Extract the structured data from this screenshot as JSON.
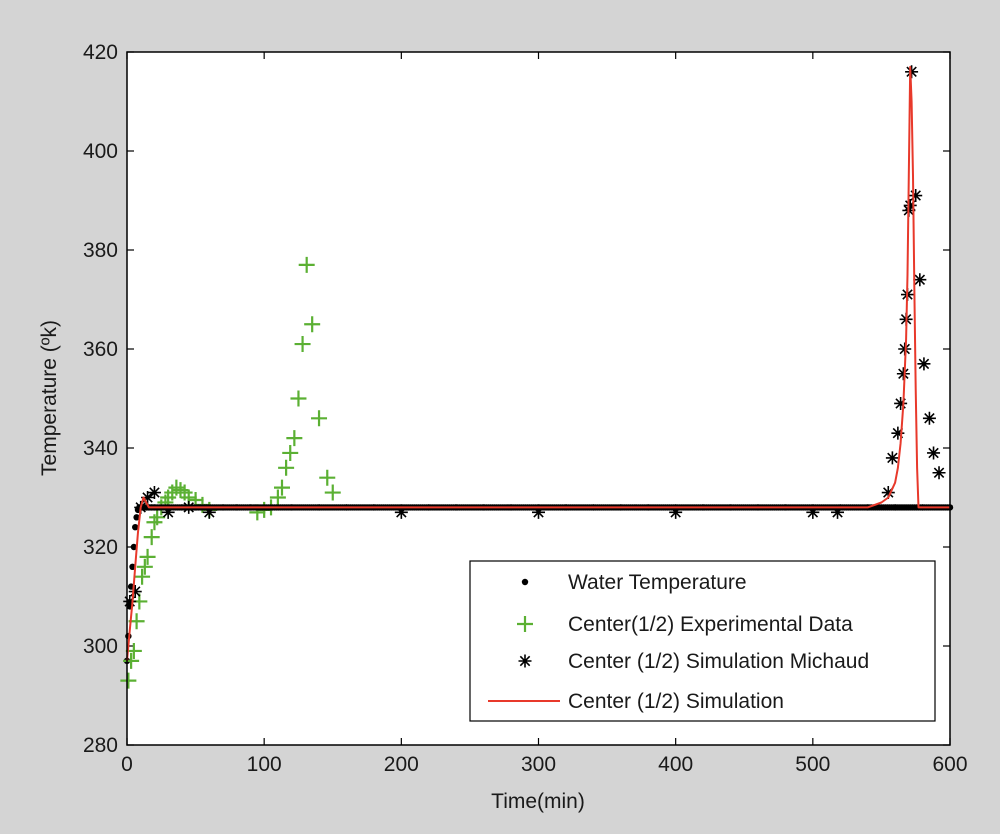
{
  "chart_data": {
    "type": "line",
    "title": "",
    "xlabel": "Time(min)",
    "ylabel": "Temperature (ºk)",
    "xlim": [
      0,
      600
    ],
    "ylim": [
      280,
      420
    ],
    "xticks": [
      0,
      100,
      200,
      300,
      400,
      500,
      600
    ],
    "yticks": [
      280,
      300,
      320,
      340,
      360,
      380,
      400,
      420
    ],
    "grid": false,
    "legend_position": "bottom-right",
    "series": [
      {
        "name": "Water Temperature",
        "marker": "dot",
        "color": "#000000",
        "x": [
          0,
          1,
          2,
          3,
          4,
          5,
          6,
          7,
          8,
          9,
          10,
          11,
          12,
          14,
          16,
          18,
          20,
          25,
          30,
          40,
          50,
          60,
          70,
          80,
          90,
          100,
          120,
          140,
          160,
          180,
          200,
          220,
          240,
          260,
          280,
          300,
          320,
          340,
          360,
          380,
          400,
          420,
          440,
          460,
          480,
          500,
          520,
          540,
          560,
          580,
          600
        ],
        "y": [
          297,
          302,
          308,
          312,
          316,
          320,
          324,
          326,
          327.5,
          328,
          328,
          328,
          328,
          328,
          328,
          328,
          328,
          328,
          328,
          328,
          328,
          328,
          328,
          328,
          328,
          328,
          328,
          328,
          328,
          328,
          328,
          328,
          328,
          328,
          328,
          328,
          328,
          328,
          328,
          328,
          328,
          328,
          328,
          328,
          328,
          328,
          328,
          328,
          328,
          328,
          328
        ]
      },
      {
        "name": "Center(1/2) Experimental Data",
        "marker": "plus",
        "color": "#5bb033",
        "x": [
          1,
          3,
          5,
          7,
          9,
          11,
          13,
          15,
          18,
          20,
          22,
          25,
          28,
          30,
          33,
          36,
          39,
          42,
          45,
          50,
          55,
          60,
          95,
          100,
          105,
          110,
          113,
          116,
          119,
          122,
          125,
          128,
          131,
          135,
          140,
          146,
          150
        ],
        "y": [
          293,
          297,
          299,
          305,
          309,
          314,
          316,
          318,
          322,
          325,
          326,
          328,
          329,
          330,
          331,
          332,
          331.5,
          331,
          330,
          329.5,
          328.5,
          327.5,
          327,
          327.5,
          328,
          330,
          332,
          336,
          339,
          342,
          350,
          361,
          377,
          365,
          346,
          334,
          331
        ]
      },
      {
        "name": "Center (1/2) Simulation Michaud",
        "marker": "asterisk",
        "color": "#000000",
        "x": [
          2,
          6,
          10,
          15,
          20,
          30,
          45,
          60,
          200,
          300,
          400,
          500,
          518,
          555,
          558,
          562,
          564,
          566,
          567,
          568,
          569,
          570,
          571,
          572,
          575,
          578,
          581,
          585,
          588,
          592
        ],
        "y": [
          309,
          311,
          328,
          330,
          331,
          327,
          328,
          327,
          327,
          327,
          327,
          327,
          327,
          331,
          338,
          343,
          349,
          355,
          360,
          366,
          371,
          388,
          389,
          416,
          391,
          374,
          357,
          346,
          339,
          335
        ]
      },
      {
        "name": "Center (1/2) Simulation",
        "marker": "line",
        "color": "#e8392b",
        "x": [
          0,
          2,
          4,
          6,
          8,
          10,
          12,
          14,
          16,
          20,
          25,
          30,
          40,
          100,
          200,
          300,
          400,
          500,
          540,
          550,
          555,
          560,
          562,
          564,
          566,
          568,
          569,
          570,
          571,
          572,
          573,
          574,
          575,
          576,
          577,
          600
        ],
        "y": [
          297,
          303,
          309,
          316,
          323,
          328,
          330,
          329,
          328,
          328,
          328,
          328,
          328,
          328,
          328,
          328,
          328,
          328,
          328,
          329,
          330,
          333,
          336,
          341,
          349,
          362,
          375,
          395,
          417,
          410,
          395,
          373,
          352,
          336,
          328,
          328
        ]
      }
    ]
  }
}
